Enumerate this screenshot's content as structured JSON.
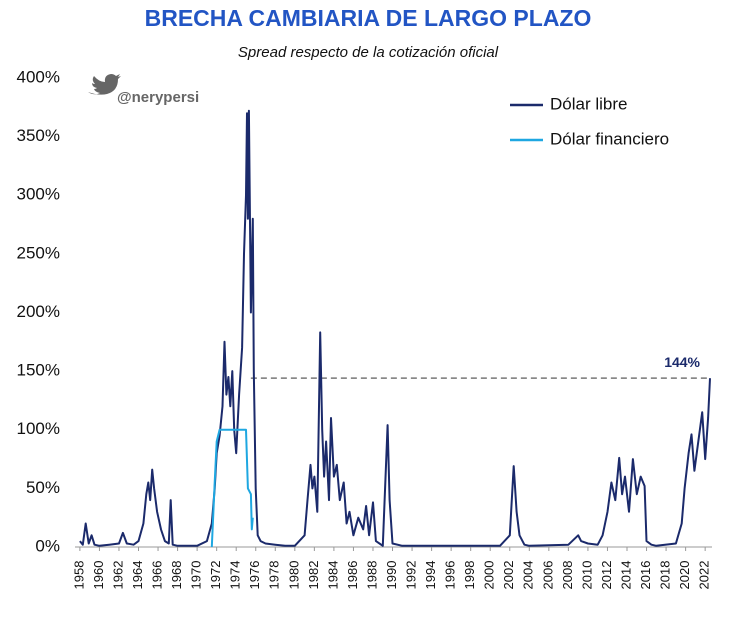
{
  "chart_data": {
    "type": "line",
    "title": "BRECHA CAMBIARIA DE LARGO PLAZO",
    "subtitle": "Spread respecto de la cotización oficial",
    "watermark": "@nerypersi",
    "xlim": [
      1957.5,
      2022.7
    ],
    "xticks": [
      1958,
      1960,
      1962,
      1964,
      1966,
      1968,
      1970,
      1972,
      1974,
      1976,
      1978,
      1980,
      1982,
      1984,
      1986,
      1988,
      1990,
      1992,
      1994,
      1996,
      1998,
      2000,
      2002,
      2004,
      2006,
      2008,
      2010,
      2012,
      2014,
      2016,
      2018,
      2020,
      2022
    ],
    "ylim": [
      0,
      400
    ],
    "yticks": [
      {
        "value": 0,
        "label": "0%"
      },
      {
        "value": 50,
        "label": "50%"
      },
      {
        "value": 100,
        "label": "100%"
      },
      {
        "value": 150,
        "label": "150%"
      },
      {
        "value": 200,
        "label": "200%"
      },
      {
        "value": 250,
        "label": "250%"
      },
      {
        "value": 300,
        "label": "300%"
      },
      {
        "value": 350,
        "label": "350%"
      },
      {
        "value": 400,
        "label": "400%"
      }
    ],
    "legend": "upper right",
    "reference_line": {
      "value": 144,
      "label": "144%",
      "from": 1975.5
    },
    "series": [
      {
        "name": "Dólar libre",
        "color": "#1b2a6b",
        "x": [
          1958.0,
          1958.3,
          1958.6,
          1958.9,
          1959.2,
          1959.5,
          1960,
          1961,
          1962,
          1962.4,
          1962.8,
          1963.5,
          1964,
          1964.5,
          1964.8,
          1965,
          1965.2,
          1965.4,
          1965.6,
          1965.9,
          1966.3,
          1966.7,
          1967.1,
          1967.3,
          1967.5,
          1968,
          1970,
          1971,
          1971.5,
          1971.8,
          1972,
          1972.3,
          1972.6,
          1972.8,
          1973,
          1973.2,
          1973.4,
          1973.6,
          1973.8,
          1974,
          1974.3,
          1974.6,
          1974.8,
          1975,
          1975.1,
          1975.2,
          1975.3,
          1975.5,
          1975.7,
          1975.8,
          1976,
          1976.2,
          1976.5,
          1977,
          1978,
          1979,
          1980,
          1981,
          1981.3,
          1981.6,
          1981.8,
          1982,
          1982.3,
          1982.6,
          1982.8,
          1983,
          1983.2,
          1983.5,
          1983.7,
          1984,
          1984.3,
          1984.6,
          1985,
          1985.3,
          1985.6,
          1986,
          1986.5,
          1987,
          1987.3,
          1987.6,
          1988,
          1988.3,
          1989,
          1989.5,
          1989.7,
          1990,
          1991,
          1992,
          2001,
          2002,
          2002.4,
          2002.7,
          2003,
          2003.5,
          2004,
          2008,
          2009,
          2009.3,
          2010,
          2011,
          2011.5,
          2012,
          2012.4,
          2012.8,
          2013.2,
          2013.5,
          2013.8,
          2014.2,
          2014.6,
          2015,
          2015.4,
          2015.8,
          2016,
          2016.5,
          2017,
          2019,
          2019.6,
          2019.9,
          2020.3,
          2020.6,
          2020.9,
          2021.3,
          2021.7,
          2022,
          2022.3,
          2022.5
        ],
        "values": [
          5,
          2,
          20,
          3,
          10,
          2,
          1,
          2,
          3,
          12,
          3,
          2,
          5,
          20,
          45,
          55,
          40,
          66,
          50,
          30,
          15,
          5,
          3,
          40,
          2,
          1,
          1,
          5,
          20,
          50,
          80,
          95,
          120,
          175,
          130,
          145,
          120,
          150,
          100,
          80,
          130,
          170,
          250,
          300,
          370,
          280,
          372,
          200,
          280,
          150,
          50,
          10,
          5,
          3,
          2,
          1,
          1,
          10,
          40,
          70,
          50,
          60,
          30,
          183,
          100,
          60,
          90,
          40,
          110,
          60,
          70,
          40,
          55,
          20,
          30,
          10,
          25,
          15,
          35,
          10,
          38,
          5,
          1,
          104,
          40,
          3,
          1,
          1,
          1,
          10,
          69,
          30,
          10,
          2,
          1,
          2,
          10,
          5,
          3,
          2,
          10,
          30,
          55,
          40,
          76,
          45,
          60,
          30,
          75,
          45,
          60,
          52,
          5,
          2,
          1,
          3,
          20,
          50,
          80,
          96,
          65,
          90,
          115,
          75,
          110,
          144
        ]
      },
      {
        "name": "Dólar financiero",
        "color": "#1ea7e1",
        "x": [
          1971.5,
          1971.8,
          1972,
          1972.3,
          1975,
          1975.2,
          1975.5,
          1975.6,
          1975.7
        ],
        "values": [
          0,
          55,
          90,
          100,
          100,
          50,
          45,
          15,
          25
        ]
      }
    ]
  }
}
